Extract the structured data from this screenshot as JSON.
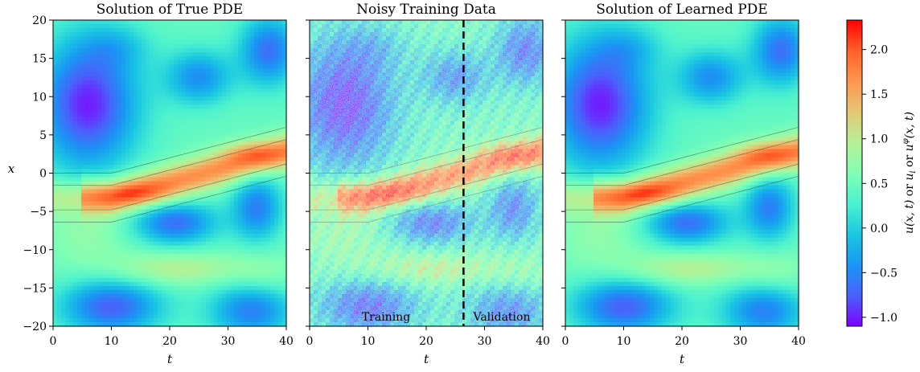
{
  "colors": {
    "colormap": [
      "#8000ff",
      "#4a61fb",
      "#1996f3",
      "#1ac7e2",
      "#4cf2ce",
      "#80ffb4",
      "#b4f296",
      "#e5c774",
      "#ff964f",
      "#ff6129",
      "#ff0000"
    ],
    "contour_line": "#2d4a3f",
    "split_line": "#000000"
  },
  "chart_data": [
    {
      "type": "heatmap",
      "title": "Solution of True PDE",
      "xlabel": "t",
      "ylabel": "x",
      "xlim": [
        0,
        40
      ],
      "ylim": [
        -20,
        20
      ],
      "xticks": [
        "0",
        "10",
        "20",
        "30",
        "40"
      ],
      "yticks": [
        "20",
        "15",
        "10",
        "5",
        "0",
        "−5",
        "−10",
        "−15",
        "−20"
      ],
      "contour_lines": true
    },
    {
      "type": "heatmap",
      "title": "Noisy Training Data",
      "xlabel": "t",
      "xlim": [
        0,
        40
      ],
      "ylim": [
        -20,
        20
      ],
      "xticks": [
        "0",
        "10",
        "20",
        "30",
        "40"
      ],
      "noisy": true,
      "split": {
        "t": 26.4,
        "left_label": "Training",
        "right_label": "Validation"
      },
      "contour_lines": true
    },
    {
      "type": "heatmap",
      "title": "Solution of Learned PDE",
      "xlabel": "t",
      "xlim": [
        0,
        40
      ],
      "ylim": [
        -20,
        20
      ],
      "xticks": [
        "0",
        "10",
        "20",
        "30",
        "40"
      ],
      "contour_lines": true
    }
  ],
  "colorbar": {
    "min": -1.1,
    "max": 2.33,
    "ticks": [
      "2.0",
      "1.5",
      "1.0",
      "0.5",
      "0.0",
      "−0.5",
      "−1.0"
    ],
    "tick_values": [
      2.0,
      1.5,
      1.0,
      0.5,
      0.0,
      -0.5,
      -1.0
    ],
    "label": "u(x, t) or uᵢ or u^φ(x, t)"
  }
}
